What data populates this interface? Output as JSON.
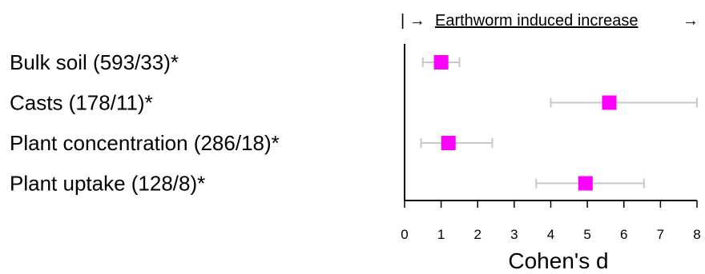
{
  "chart_data": {
    "type": "forest",
    "xlabel": "Cohen's d",
    "xlim": [
      0,
      8
    ],
    "xticks": [
      0,
      1,
      2,
      3,
      4,
      5,
      6,
      7,
      8
    ],
    "annotation": {
      "prefix": "| →",
      "text": "Earthworm induced increase",
      "suffix": "→"
    },
    "marker_color": "#ff00ff",
    "ci_color": "#c8c8c8",
    "rows": [
      {
        "label": "Bulk soil (593/33)*",
        "estimate": 1.0,
        "ci_low": 0.5,
        "ci_high": 1.5
      },
      {
        "label": "Casts (178/11)*",
        "estimate": 5.6,
        "ci_low": 4.0,
        "ci_high": 8.0
      },
      {
        "label": "Plant concentration (286/18)*",
        "estimate": 1.2,
        "ci_low": 0.45,
        "ci_high": 2.4
      },
      {
        "label": "Plant uptake (128/8)*",
        "estimate": 4.95,
        "ci_low": 3.6,
        "ci_high": 6.55
      }
    ]
  }
}
